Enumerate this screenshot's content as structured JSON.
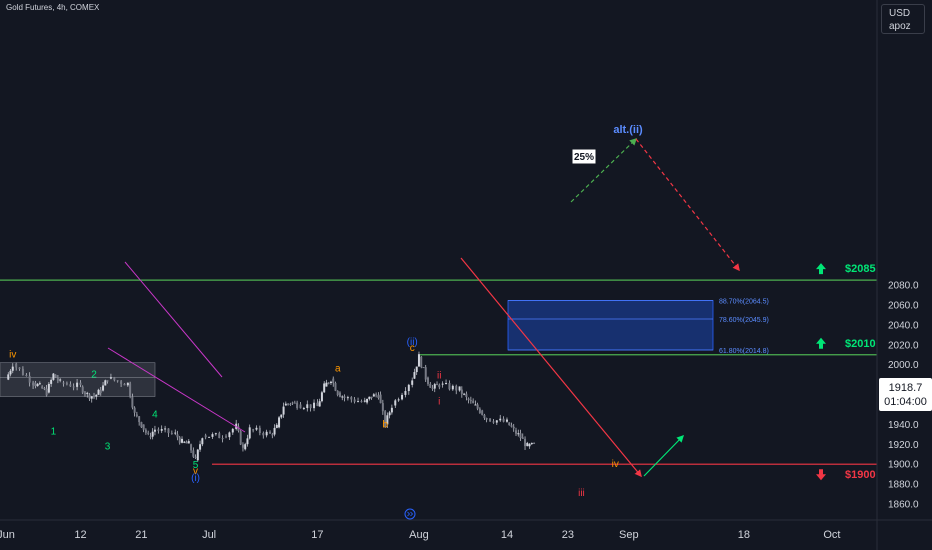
{
  "header": {
    "instrument": "Gold Futures, 4h, COMEX"
  },
  "currency_box": {
    "currency": "USD",
    "user": "apoz"
  },
  "current_price": {
    "price": "1918.7",
    "countdown": "01:04:00"
  },
  "colors": {
    "background": "#131722",
    "green": "#4caf50",
    "bright_green": "#00e676",
    "red": "#f23645",
    "blue_wave": "#2962ff",
    "orange_wave": "#ff9800",
    "fib_zone": "#1a3a8a",
    "magenta": "#c837c8"
  },
  "levels": [
    {
      "name": "target-2085",
      "price": 2085,
      "label": "$2085",
      "direction": "up",
      "color": "#4caf50"
    },
    {
      "name": "target-2010",
      "price": 2010,
      "label": "$2010",
      "direction": "up",
      "color": "#4caf50"
    },
    {
      "name": "target-1900",
      "price": 1900,
      "label": "$1900",
      "direction": "down",
      "color": "#f23645"
    }
  ],
  "fib_zone": {
    "levels": [
      {
        "price": 2064.5,
        "label": "88.70%(2064.5)"
      },
      {
        "price": 2045.9,
        "label": "78.60%(2045.9)"
      },
      {
        "price": 2014.8,
        "label": "61.80%(2014.8)"
      }
    ],
    "scenario_label": "alt.(ii)",
    "probability_label": "25%"
  },
  "wave_labels": [
    {
      "text": "iv",
      "x_date": "2023-06-02",
      "y": 2007,
      "color": "#ff9800"
    },
    {
      "text": "2",
      "x_date": "2023-06-14",
      "y": 1987,
      "color": "#00e676"
    },
    {
      "text": "1",
      "x_date": "2023-06-08",
      "y": 1930,
      "color": "#00e676"
    },
    {
      "text": "4",
      "x_date": "2023-06-23",
      "y": 1947,
      "color": "#00e676"
    },
    {
      "text": "3",
      "x_date": "2023-06-16",
      "y": 1915,
      "color": "#00e676"
    },
    {
      "text": "5",
      "x_date": "2023-06-29",
      "y": 1896,
      "color": "#00e676"
    },
    {
      "text": "v",
      "x_date": "2023-06-29",
      "y": 1890,
      "color": "#ff9800"
    },
    {
      "text": "(i)",
      "x_date": "2023-06-29",
      "y": 1883,
      "color": "#2962ff"
    },
    {
      "text": "a",
      "x_date": "2023-07-20",
      "y": 1993,
      "color": "#ff9800"
    },
    {
      "text": "b",
      "x_date": "2023-07-27",
      "y": 1937,
      "color": "#ff9800"
    },
    {
      "text": "(ii)",
      "x_date": "2023-07-31",
      "y": 2020,
      "color": "#2962ff"
    },
    {
      "text": "c",
      "x_date": "2023-07-31",
      "y": 2014,
      "color": "#ff9800"
    },
    {
      "text": "ii",
      "x_date": "2023-08-04",
      "y": 1986,
      "color": "#f23645"
    },
    {
      "text": "i",
      "x_date": "2023-08-04",
      "y": 1960,
      "color": "#f23645"
    },
    {
      "text": "iii",
      "x_date": "2023-08-25",
      "y": 1868,
      "color": "#f23645"
    },
    {
      "text": "iv",
      "x_date": "2023-08-30",
      "y": 1897,
      "color": "#ff9800"
    }
  ],
  "chart_data": {
    "type": "line",
    "title": "",
    "xlabel": "",
    "ylabel": "",
    "ylim": [
      1850,
      2100
    ],
    "yticks": [
      1860,
      1880,
      1900,
      1920,
      1940,
      1960,
      1980,
      2000,
      2020,
      2040,
      2060,
      2080
    ],
    "ytick_labels": [
      "1860.0",
      "1880.0",
      "1900.0",
      "1920.0",
      "1940.0",
      "1960.0",
      "1980.0",
      "2000.0",
      "2020.0",
      "2040.0",
      "2060.0",
      "2080.0"
    ],
    "xrange": [
      "2023-05-31",
      "2023-10-02"
    ],
    "xticks": [
      "2023-06-01",
      "2023-06-12",
      "2023-06-21",
      "2023-07-01",
      "2023-07-17",
      "2023-08-01",
      "2023-08-14",
      "2023-08-23",
      "2023-09-01",
      "2023-09-18",
      "2023-10-01"
    ],
    "xtick_labels": [
      "Jun",
      "12",
      "21",
      "Jul",
      "17",
      "Aug",
      "14",
      "23",
      "Sep",
      "18",
      "Oct"
    ],
    "series": [
      {
        "x": [
          "2023-06-01",
          "2023-06-02",
          "2023-06-05",
          "2023-06-06",
          "2023-06-07",
          "2023-06-08",
          "2023-06-09",
          "2023-06-12",
          "2023-06-13",
          "2023-06-14",
          "2023-06-15",
          "2023-06-16",
          "2023-06-19",
          "2023-06-20",
          "2023-06-21",
          "2023-06-22",
          "2023-06-23",
          "2023-06-26",
          "2023-06-27",
          "2023-06-28",
          "2023-06-29",
          "2023-06-30",
          "2023-07-03",
          "2023-07-05",
          "2023-07-06",
          "2023-07-07",
          "2023-07-10",
          "2023-07-11",
          "2023-07-12",
          "2023-07-13",
          "2023-07-14",
          "2023-07-17",
          "2023-07-18",
          "2023-07-19",
          "2023-07-20",
          "2023-07-21",
          "2023-07-24",
          "2023-07-25",
          "2023-07-26",
          "2023-07-27",
          "2023-07-28",
          "2023-07-31",
          "2023-08-01",
          "2023-08-02",
          "2023-08-03",
          "2023-08-04",
          "2023-08-07",
          "2023-08-08",
          "2023-08-09",
          "2023-08-10",
          "2023-08-11",
          "2023-08-14",
          "2023-08-15",
          "2023-08-16",
          "2023-08-17",
          "2023-08-18"
        ],
        "values": [
          1985,
          2001,
          1982,
          1978,
          1972,
          1990,
          1982,
          1978,
          1970,
          1968,
          1974,
          1986,
          1981,
          1950,
          1940,
          1928,
          1935,
          1930,
          1922,
          1920,
          1904,
          1929,
          1928,
          1938,
          1915,
          1935,
          1930,
          1937,
          1959,
          1962,
          1960,
          1958,
          1978,
          1986,
          1972,
          1967,
          1962,
          1968,
          1970,
          1940,
          1959,
          1986,
          2008,
          1987,
          1976,
          1980,
          1975,
          1966,
          1960,
          1954,
          1946,
          1942,
          1934,
          1927,
          1918,
          1918.7
        ]
      }
    ]
  }
}
